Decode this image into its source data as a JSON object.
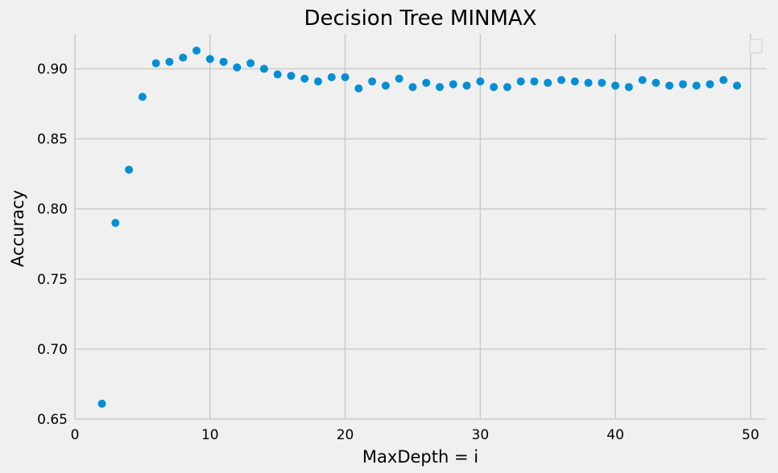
{
  "chart_data": {
    "type": "scatter",
    "title": "Decision Tree MINMAX",
    "xlabel": "MaxDepth = i",
    "ylabel": "Accuracy",
    "xlim": [
      0,
      51.2
    ],
    "ylim": [
      0.65,
      0.925
    ],
    "x_ticks": [
      0,
      10,
      20,
      30,
      40,
      50
    ],
    "y_ticks": [
      0.65,
      0.7,
      0.75,
      0.8,
      0.85,
      0.9
    ],
    "x_tick_labels": [
      "0",
      "10",
      "20",
      "30",
      "40",
      "50"
    ],
    "y_tick_labels": [
      "0.65",
      "0.70",
      "0.75",
      "0.80",
      "0.85",
      "0.90"
    ],
    "grid": true,
    "legend": {
      "position": "upper right",
      "entries": []
    },
    "colors": {
      "marker": "#008fd5",
      "background": "#f0f0f0",
      "grid": "#cbcbcb"
    },
    "series": [
      {
        "x": [
          2,
          3,
          4,
          5,
          6,
          7,
          8,
          9,
          10,
          11,
          12,
          13,
          14,
          15,
          16,
          17,
          18,
          19,
          20,
          21,
          22,
          23,
          24,
          25,
          26,
          27,
          28,
          29,
          30,
          31,
          32,
          33,
          34,
          35,
          36,
          37,
          38,
          39,
          40,
          41,
          42,
          43,
          44,
          45,
          46,
          47,
          48,
          49
        ],
        "y": [
          0.661,
          0.79,
          0.828,
          0.88,
          0.904,
          0.905,
          0.908,
          0.913,
          0.907,
          0.905,
          0.901,
          0.904,
          0.9,
          0.896,
          0.895,
          0.893,
          0.891,
          0.894,
          0.894,
          0.886,
          0.891,
          0.888,
          0.893,
          0.887,
          0.89,
          0.887,
          0.889,
          0.888,
          0.891,
          0.887,
          0.887,
          0.891,
          0.891,
          0.89,
          0.892,
          0.891,
          0.89,
          0.89,
          0.888,
          0.887,
          0.892,
          0.89,
          0.888,
          0.889,
          0.888,
          0.889,
          0.892,
          0.888
        ]
      }
    ]
  }
}
